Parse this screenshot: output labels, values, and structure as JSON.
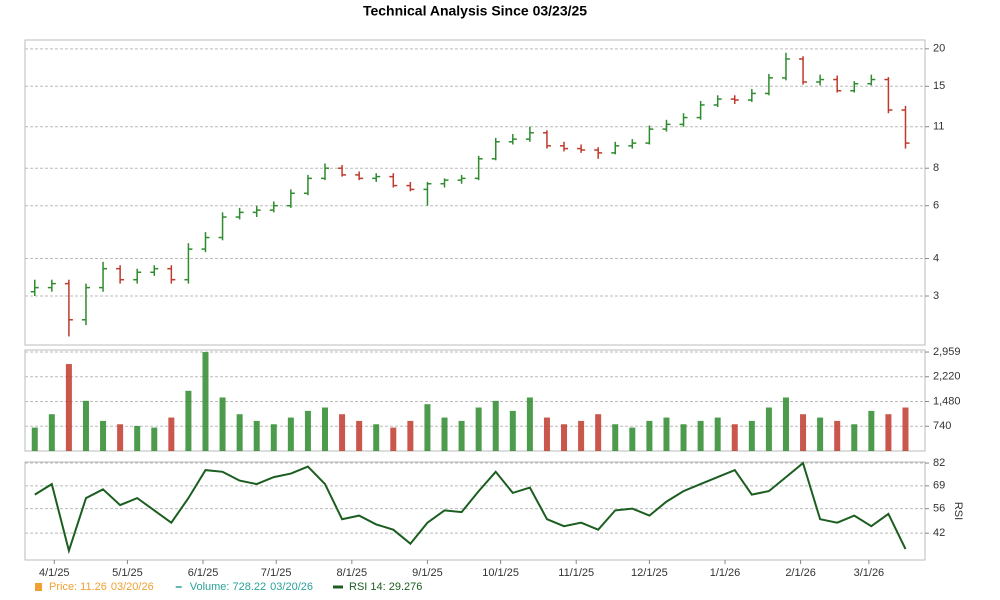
{
  "title": "Technical Analysis Since 03/23/25",
  "chart_data": [
    {
      "type": "ohlc",
      "log_scale": true,
      "grid": true,
      "up_color": "#2e8b2e",
      "down_color": "#c0392b",
      "x": [
        "3/24/25",
        "3/31/25",
        "4/7/25",
        "4/14/25",
        "4/21/25",
        "4/28/25",
        "5/5/25",
        "5/12/25",
        "5/19/25",
        "5/26/25",
        "6/2/25",
        "6/9/25",
        "6/16/25",
        "6/23/25",
        "6/30/25",
        "7/7/25",
        "7/14/25",
        "7/21/25",
        "7/28/25",
        "8/4/25",
        "8/11/25",
        "8/18/25",
        "8/25/25",
        "9/1/25",
        "9/8/25",
        "9/15/25",
        "9/22/25",
        "9/29/25",
        "10/6/25",
        "10/13/25",
        "10/20/25",
        "10/27/25",
        "11/3/25",
        "11/10/25",
        "11/17/25",
        "11/24/25",
        "12/1/25",
        "12/8/25",
        "12/15/25",
        "12/22/25",
        "12/29/25",
        "1/5/26",
        "1/12/26",
        "1/19/26",
        "1/26/26",
        "2/2/26",
        "2/9/26",
        "2/16/26",
        "2/23/26",
        "3/2/26",
        "3/9/26",
        "3/16/26"
      ],
      "xlim": [
        "3/20/25",
        "3/24/26"
      ],
      "open": [
        3.1,
        3.2,
        3.3,
        2.5,
        3.2,
        3.7,
        3.4,
        3.6,
        3.7,
        3.4,
        4.3,
        4.7,
        5.5,
        5.7,
        5.8,
        6.0,
        6.6,
        7.4,
        8.0,
        7.6,
        7.4,
        7.5,
        7.0,
        6.8,
        7.1,
        7.3,
        7.4,
        8.6,
        9.8,
        10.0,
        10.5,
        9.5,
        9.3,
        9.2,
        9.0,
        9.5,
        9.7,
        10.8,
        11.2,
        11.8,
        13.0,
        13.6,
        13.5,
        14.2,
        16.0,
        18.5,
        15.5,
        15.8,
        14.5,
        15.3,
        15.8,
        12.5
      ],
      "high": [
        3.4,
        3.4,
        3.4,
        3.3,
        3.9,
        3.8,
        3.7,
        3.8,
        3.8,
        4.5,
        4.9,
        5.7,
        5.9,
        6.0,
        6.2,
        6.8,
        7.6,
        8.3,
        8.2,
        7.8,
        7.7,
        7.7,
        7.2,
        7.2,
        7.4,
        7.6,
        8.8,
        10.1,
        10.4,
        11.0,
        10.7,
        9.8,
        9.6,
        9.4,
        9.8,
        10.0,
        11.1,
        11.6,
        12.2,
        13.4,
        14.0,
        14.0,
        14.7,
        16.5,
        19.4,
        18.9,
        16.4,
        16.3,
        15.6,
        16.4,
        16.1,
        12.9
      ],
      "low": [
        3.0,
        3.1,
        2.2,
        2.4,
        3.1,
        3.3,
        3.3,
        3.5,
        3.3,
        3.3,
        4.2,
        4.6,
        5.4,
        5.5,
        5.7,
        5.9,
        6.5,
        7.3,
        7.5,
        7.3,
        7.2,
        6.9,
        6.7,
        6.0,
        6.9,
        7.1,
        7.3,
        8.5,
        9.6,
        9.8,
        9.3,
        9.1,
        9.0,
        8.6,
        8.9,
        9.3,
        9.6,
        10.6,
        11.0,
        11.6,
        12.8,
        13.1,
        13.3,
        14.0,
        15.7,
        15.2,
        15.1,
        14.3,
        14.3,
        15.1,
        12.2,
        9.3
      ],
      "close": [
        3.2,
        3.3,
        2.5,
        3.2,
        3.7,
        3.4,
        3.6,
        3.7,
        3.4,
        4.3,
        4.7,
        5.5,
        5.7,
        5.8,
        6.0,
        6.6,
        7.4,
        8.0,
        7.6,
        7.4,
        7.5,
        7.0,
        6.8,
        7.1,
        7.3,
        7.4,
        8.6,
        9.8,
        10.0,
        10.5,
        9.5,
        9.3,
        9.2,
        9.0,
        9.5,
        9.7,
        10.8,
        11.2,
        11.8,
        13.0,
        13.6,
        13.5,
        14.2,
        16.0,
        18.5,
        15.5,
        15.8,
        14.5,
        15.3,
        15.8,
        12.5,
        9.7
      ],
      "ylim": [
        2.06,
        21.4
      ],
      "yticks": [
        3,
        4,
        6,
        8,
        11,
        15,
        20
      ]
    },
    {
      "type": "volume",
      "grid": true,
      "up_color": "#2e8b2e",
      "down_color": "#c0392b",
      "x": [
        "3/24/25",
        "3/31/25",
        "4/7/25",
        "4/14/25",
        "4/21/25",
        "4/28/25",
        "5/5/25",
        "5/12/25",
        "5/19/25",
        "5/26/25",
        "6/2/25",
        "6/9/25",
        "6/16/25",
        "6/23/25",
        "6/30/25",
        "7/7/25",
        "7/14/25",
        "7/21/25",
        "7/28/25",
        "8/4/25",
        "8/11/25",
        "8/18/25",
        "8/25/25",
        "9/1/25",
        "9/8/25",
        "9/15/25",
        "9/22/25",
        "9/29/25",
        "10/6/25",
        "10/13/25",
        "10/20/25",
        "10/27/25",
        "11/3/25",
        "11/10/25",
        "11/17/25",
        "11/24/25",
        "12/1/25",
        "12/8/25",
        "12/15/25",
        "12/22/25",
        "12/29/25",
        "1/5/26",
        "1/12/26",
        "1/19/26",
        "1/26/26",
        "2/2/26",
        "2/9/26",
        "2/16/26",
        "2/23/26",
        "3/2/26",
        "3/9/26",
        "3/16/26"
      ],
      "xlim": [
        "3/20/25",
        "3/24/26"
      ],
      "values": [
        700,
        1100,
        2600,
        1500,
        900,
        800,
        750,
        700,
        1000,
        1800,
        2959,
        1600,
        1100,
        900,
        800,
        1000,
        1200,
        1300,
        1100,
        900,
        800,
        700,
        900,
        1400,
        1000,
        900,
        1300,
        1500,
        1200,
        1600,
        1000,
        800,
        900,
        1100,
        800,
        700,
        900,
        1000,
        800,
        900,
        1000,
        800,
        900,
        1300,
        1600,
        1100,
        1000,
        900,
        800,
        1200,
        1100,
        1300
      ],
      "ylim": [
        0,
        3020
      ],
      "yticks": [
        740,
        {
          "value": 1480,
          "label": "1,480"
        },
        {
          "value": 2220,
          "label": "2,220"
        },
        {
          "value": 2959,
          "label": "2,959"
        }
      ]
    },
    {
      "type": "line",
      "grid": true,
      "color": "#1b5e20",
      "ylabel": "RSI",
      "x": [
        "3/24/25",
        "3/31/25",
        "4/7/25",
        "4/14/25",
        "4/21/25",
        "4/28/25",
        "5/5/25",
        "5/12/25",
        "5/19/25",
        "5/26/25",
        "6/2/25",
        "6/9/25",
        "6/16/25",
        "6/23/25",
        "6/30/25",
        "7/7/25",
        "7/14/25",
        "7/21/25",
        "7/28/25",
        "8/4/25",
        "8/11/25",
        "8/18/25",
        "8/25/25",
        "9/1/25",
        "9/8/25",
        "9/15/25",
        "9/22/25",
        "9/29/25",
        "10/6/25",
        "10/13/25",
        "10/20/25",
        "10/27/25",
        "11/3/25",
        "11/10/25",
        "11/17/25",
        "11/24/25",
        "12/1/25",
        "12/8/25",
        "12/15/25",
        "12/22/25",
        "12/29/25",
        "1/5/26",
        "1/12/26",
        "1/19/26",
        "1/26/26",
        "2/2/26",
        "2/9/26",
        "2/16/26",
        "2/23/26",
        "3/2/26",
        "3/9/26",
        "3/16/26"
      ],
      "xlim": [
        "3/20/25",
        "3/24/26"
      ],
      "values": [
        64,
        70,
        32,
        62,
        67,
        58,
        62,
        55,
        48,
        62,
        78,
        77,
        72,
        70,
        74,
        76,
        80,
        70,
        50,
        52,
        47,
        44,
        36,
        48,
        55,
        54,
        66,
        77,
        65,
        68,
        50,
        46,
        48,
        44,
        55,
        56,
        52,
        60,
        66,
        70,
        74,
        78,
        64,
        66,
        74,
        82,
        50,
        48,
        52,
        46,
        53,
        33
      ],
      "ylim": [
        26.7,
        82.6
      ],
      "yticks": [
        42,
        56,
        69,
        82
      ],
      "xticks": [
        "4/1/25",
        "5/1/25",
        "6/1/25",
        "7/1/25",
        "8/1/25",
        "9/1/25",
        "10/1/25",
        "11/1/25",
        "12/1/25",
        "1/1/26",
        "2/1/26",
        "3/1/26"
      ]
    }
  ],
  "legend": [
    {
      "label": "Price: 11.26",
      "date": "03/20/26",
      "color": "#f0a030",
      "icon": "square"
    },
    {
      "label": "Volume: 728.22",
      "date": "03/20/26",
      "color": "#2aa198",
      "icon": "dash"
    },
    {
      "label": "RSI 14: 29.276",
      "color": "#1b5e20",
      "icon": "line"
    }
  ]
}
